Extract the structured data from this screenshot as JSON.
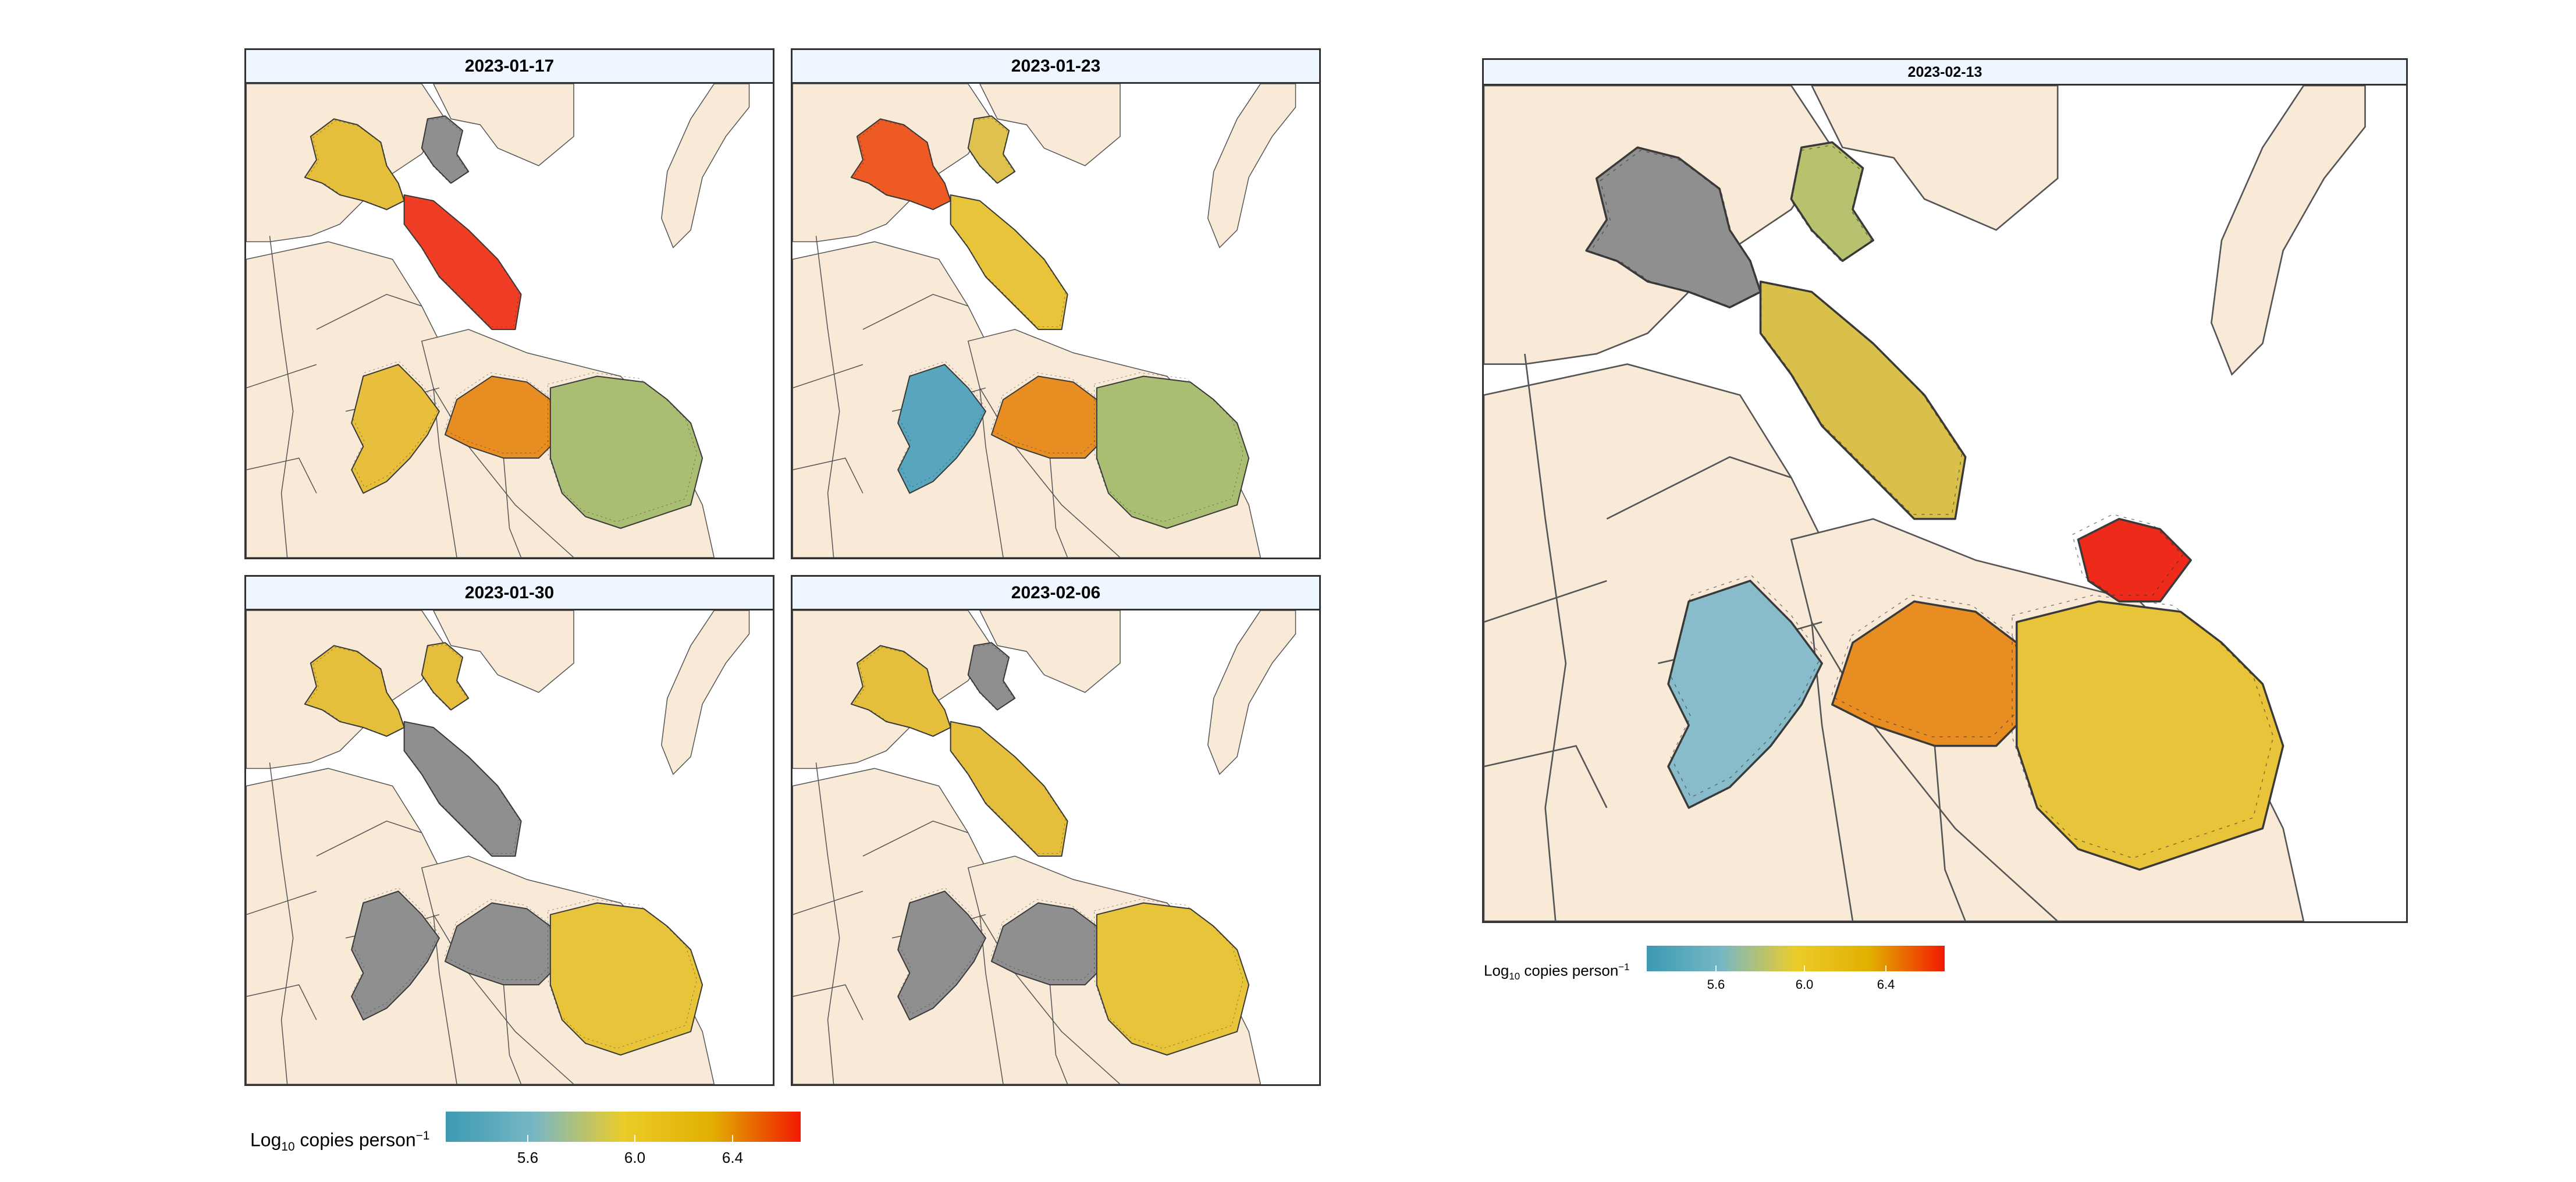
{
  "figure": {
    "panels": [
      {
        "date": "2023-01-17",
        "colors": {
          "north_west": "#e5bf3c",
          "north_east": "#8f8f8f",
          "north_center": "#ef3e25",
          "south_west": "#e8be3d",
          "south_center": "#e88d22",
          "south_east": "#a9be73"
        }
      },
      {
        "date": "2023-01-23",
        "colors": {
          "north_west": "#ee5a24",
          "north_east": "#dfc14d",
          "north_center": "#e8c43a",
          "south_west": "#58a6bd",
          "south_center": "#e88d22",
          "south_east": "#a9be73"
        }
      },
      {
        "date": "2023-01-30",
        "colors": {
          "north_west": "#e5bf3c",
          "north_east": "#e5bf3c",
          "north_center": "#8f8f8f",
          "south_west": "#8f8f8f",
          "south_center": "#8f8f8f",
          "south_east": "#e8c43a"
        }
      },
      {
        "date": "2023-02-06",
        "colors": {
          "north_west": "#e5bf3c",
          "north_east": "#8f8f8f",
          "north_center": "#e5bf3c",
          "south_west": "#8f8f8f",
          "south_center": "#8f8f8f",
          "south_east": "#e8c43a"
        }
      },
      {
        "date": "2023-02-13",
        "colors": {
          "north_west": "#8f8f8f",
          "north_east": "#b7c16e",
          "north_center": "#d8c04a",
          "south_west": "#89bccb",
          "south_center": "#e88d22",
          "south_east": "#e8c43a",
          "far_north": "#ee2a1a"
        }
      }
    ],
    "land_color": "#f9ead8",
    "water_color": "#ffffff",
    "legend": {
      "title_main": "Log",
      "title_sub": "10",
      "title_rest": " copies person",
      "title_sup": "−1",
      "ticks": [
        "5.6",
        "6.0",
        "6.4"
      ],
      "colors": [
        "#3b9ab2",
        "#78b7c5",
        "#ebcc2a",
        "#e1af00",
        "#f21a00"
      ]
    }
  }
}
